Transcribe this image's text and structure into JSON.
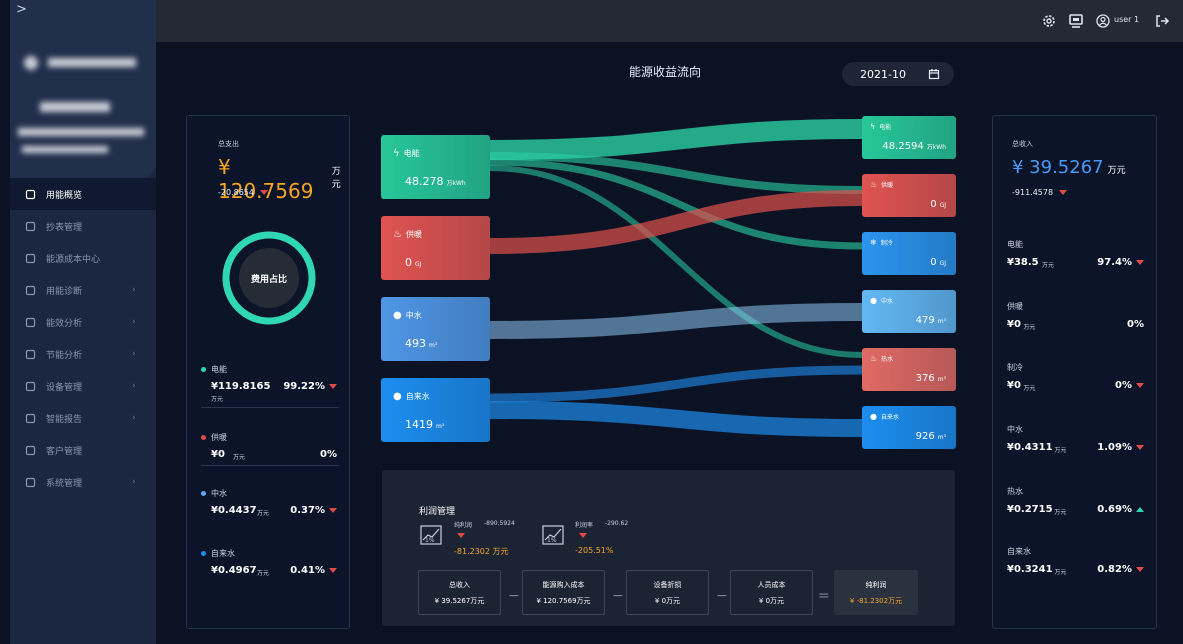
{
  "sidebar": {
    "toggle": ">",
    "menu": [
      {
        "label": "用能概览",
        "icon": "cube-icon",
        "active": true,
        "arrow": false
      },
      {
        "label": "抄表管理",
        "icon": "meter-icon",
        "active": false,
        "arrow": false
      },
      {
        "label": "能源成本中心",
        "icon": "cost-icon",
        "active": false,
        "arrow": false
      },
      {
        "label": "用能诊断",
        "icon": "pulse-icon",
        "active": false,
        "arrow": true
      },
      {
        "label": "能效分析",
        "icon": "gauge-icon",
        "active": false,
        "arrow": true
      },
      {
        "label": "节能分析",
        "icon": "leaf-icon",
        "active": false,
        "arrow": true
      },
      {
        "label": "设备管理",
        "icon": "device-icon",
        "active": false,
        "arrow": true
      },
      {
        "label": "智能报告",
        "icon": "report-icon",
        "active": false,
        "arrow": true
      },
      {
        "label": "客户管理",
        "icon": "customer-icon",
        "active": false,
        "arrow": false
      },
      {
        "label": "系统管理",
        "icon": "system-icon",
        "active": false,
        "arrow": true
      }
    ]
  },
  "topbar": {
    "icons": [
      "settings-icon",
      "monitor-icon",
      "user-icon",
      "logout-icon"
    ],
    "user": "user 1"
  },
  "page": {
    "title": "能源收益流向",
    "date": "2021-10"
  },
  "expense": {
    "title": "总支出",
    "amount": "¥ 120.7569",
    "unit": "万元",
    "change": "-20.8654",
    "ring_label": "费用占比",
    "items": [
      {
        "name": "电能",
        "value": "¥119.8165",
        "unit": "万元",
        "pct": "99.22%",
        "trend": "down",
        "color": "#2fd7b4"
      },
      {
        "name": "供暖",
        "value": "¥0",
        "unit": "万元",
        "pct": "0%",
        "trend": "none",
        "color": "#e24a4a"
      },
      {
        "name": "中水",
        "value": "¥0.4437",
        "unit": "万元",
        "pct": "0.37%",
        "trend": "down",
        "color": "#5aa9f5"
      },
      {
        "name": "自来水",
        "value": "¥0.4967",
        "unit": "万元",
        "pct": "0.41%",
        "trend": "down",
        "color": "#1e8ff0"
      }
    ]
  },
  "income": {
    "title": "总收入",
    "amount": "¥ 39.5267",
    "unit": "万元",
    "change": "-911.4578",
    "items": [
      {
        "name": "电能",
        "value": "¥38.5",
        "unit": "万元",
        "pct": "97.4%",
        "trend": "down"
      },
      {
        "name": "供暖",
        "value": "¥0",
        "unit": "万元",
        "pct": "0%",
        "trend": "none"
      },
      {
        "name": "制冷",
        "value": "¥0",
        "unit": "万元",
        "pct": "0%",
        "trend": "down"
      },
      {
        "name": "中水",
        "value": "¥0.4311",
        "unit": "万元",
        "pct": "1.09%",
        "trend": "down"
      },
      {
        "name": "热水",
        "value": "¥0.2715",
        "unit": "万元",
        "pct": "0.69%",
        "trend": "up"
      },
      {
        "name": "自来水",
        "value": "¥0.3241",
        "unit": "万元",
        "pct": "0.82%",
        "trend": "down"
      }
    ]
  },
  "sankey": {
    "sources": [
      {
        "name": "电能",
        "value": "48.278",
        "unit": "万kWh",
        "icon": "bolt-icon",
        "color": "#27c79a"
      },
      {
        "name": "供暖",
        "value": "0",
        "unit": "GJ",
        "icon": "heat-icon",
        "color": "#df5451"
      },
      {
        "name": "中水",
        "value": "493",
        "unit": "m³",
        "icon": "drop-icon",
        "color": "#4f97e6"
      },
      {
        "name": "自来水",
        "value": "1419",
        "unit": "m³",
        "icon": "drop-icon",
        "color": "#1c8ef0"
      }
    ],
    "targets": [
      {
        "name": "电能",
        "value": "48.2594",
        "unit": "万kWh",
        "icon": "bolt-icon",
        "color": "#27c79a"
      },
      {
        "name": "供暖",
        "value": "0",
        "unit": "GJ",
        "icon": "heat-icon",
        "color": "#df5451"
      },
      {
        "name": "制冷",
        "value": "0",
        "unit": "GJ",
        "icon": "snow-icon",
        "color": "#2b95ee"
      },
      {
        "name": "中水",
        "value": "479",
        "unit": "m³",
        "icon": "drop-icon",
        "color": "#63b8f5"
      },
      {
        "name": "热水",
        "value": "376",
        "unit": "m³",
        "icon": "hotwater-icon",
        "color": "#e06a64"
      },
      {
        "name": "自来水",
        "value": "926",
        "unit": "m³",
        "icon": "drop-icon",
        "color": "#1c8ef0"
      }
    ]
  },
  "profit": {
    "title": "利润管理",
    "net_profit_label": "纯利润",
    "net_profit_change": "-890.5924",
    "net_profit_value": "-81.2302 万元",
    "margin_label": "利润率",
    "margin_change": "-290.62",
    "margin_value": "-205.51%",
    "formula": [
      {
        "label": "总收入",
        "value": "¥ 39.5267万元"
      },
      {
        "label": "能源购入成本",
        "value": "¥ 120.7569万元"
      },
      {
        "label": "设备折损",
        "value": "¥ 0万元"
      },
      {
        "label": "人员成本",
        "value": "¥ 0万元"
      }
    ],
    "ops": [
      "−",
      "−",
      "−",
      "="
    ],
    "result_label": "纯利润",
    "result_value": "¥ -81.2302万元"
  }
}
